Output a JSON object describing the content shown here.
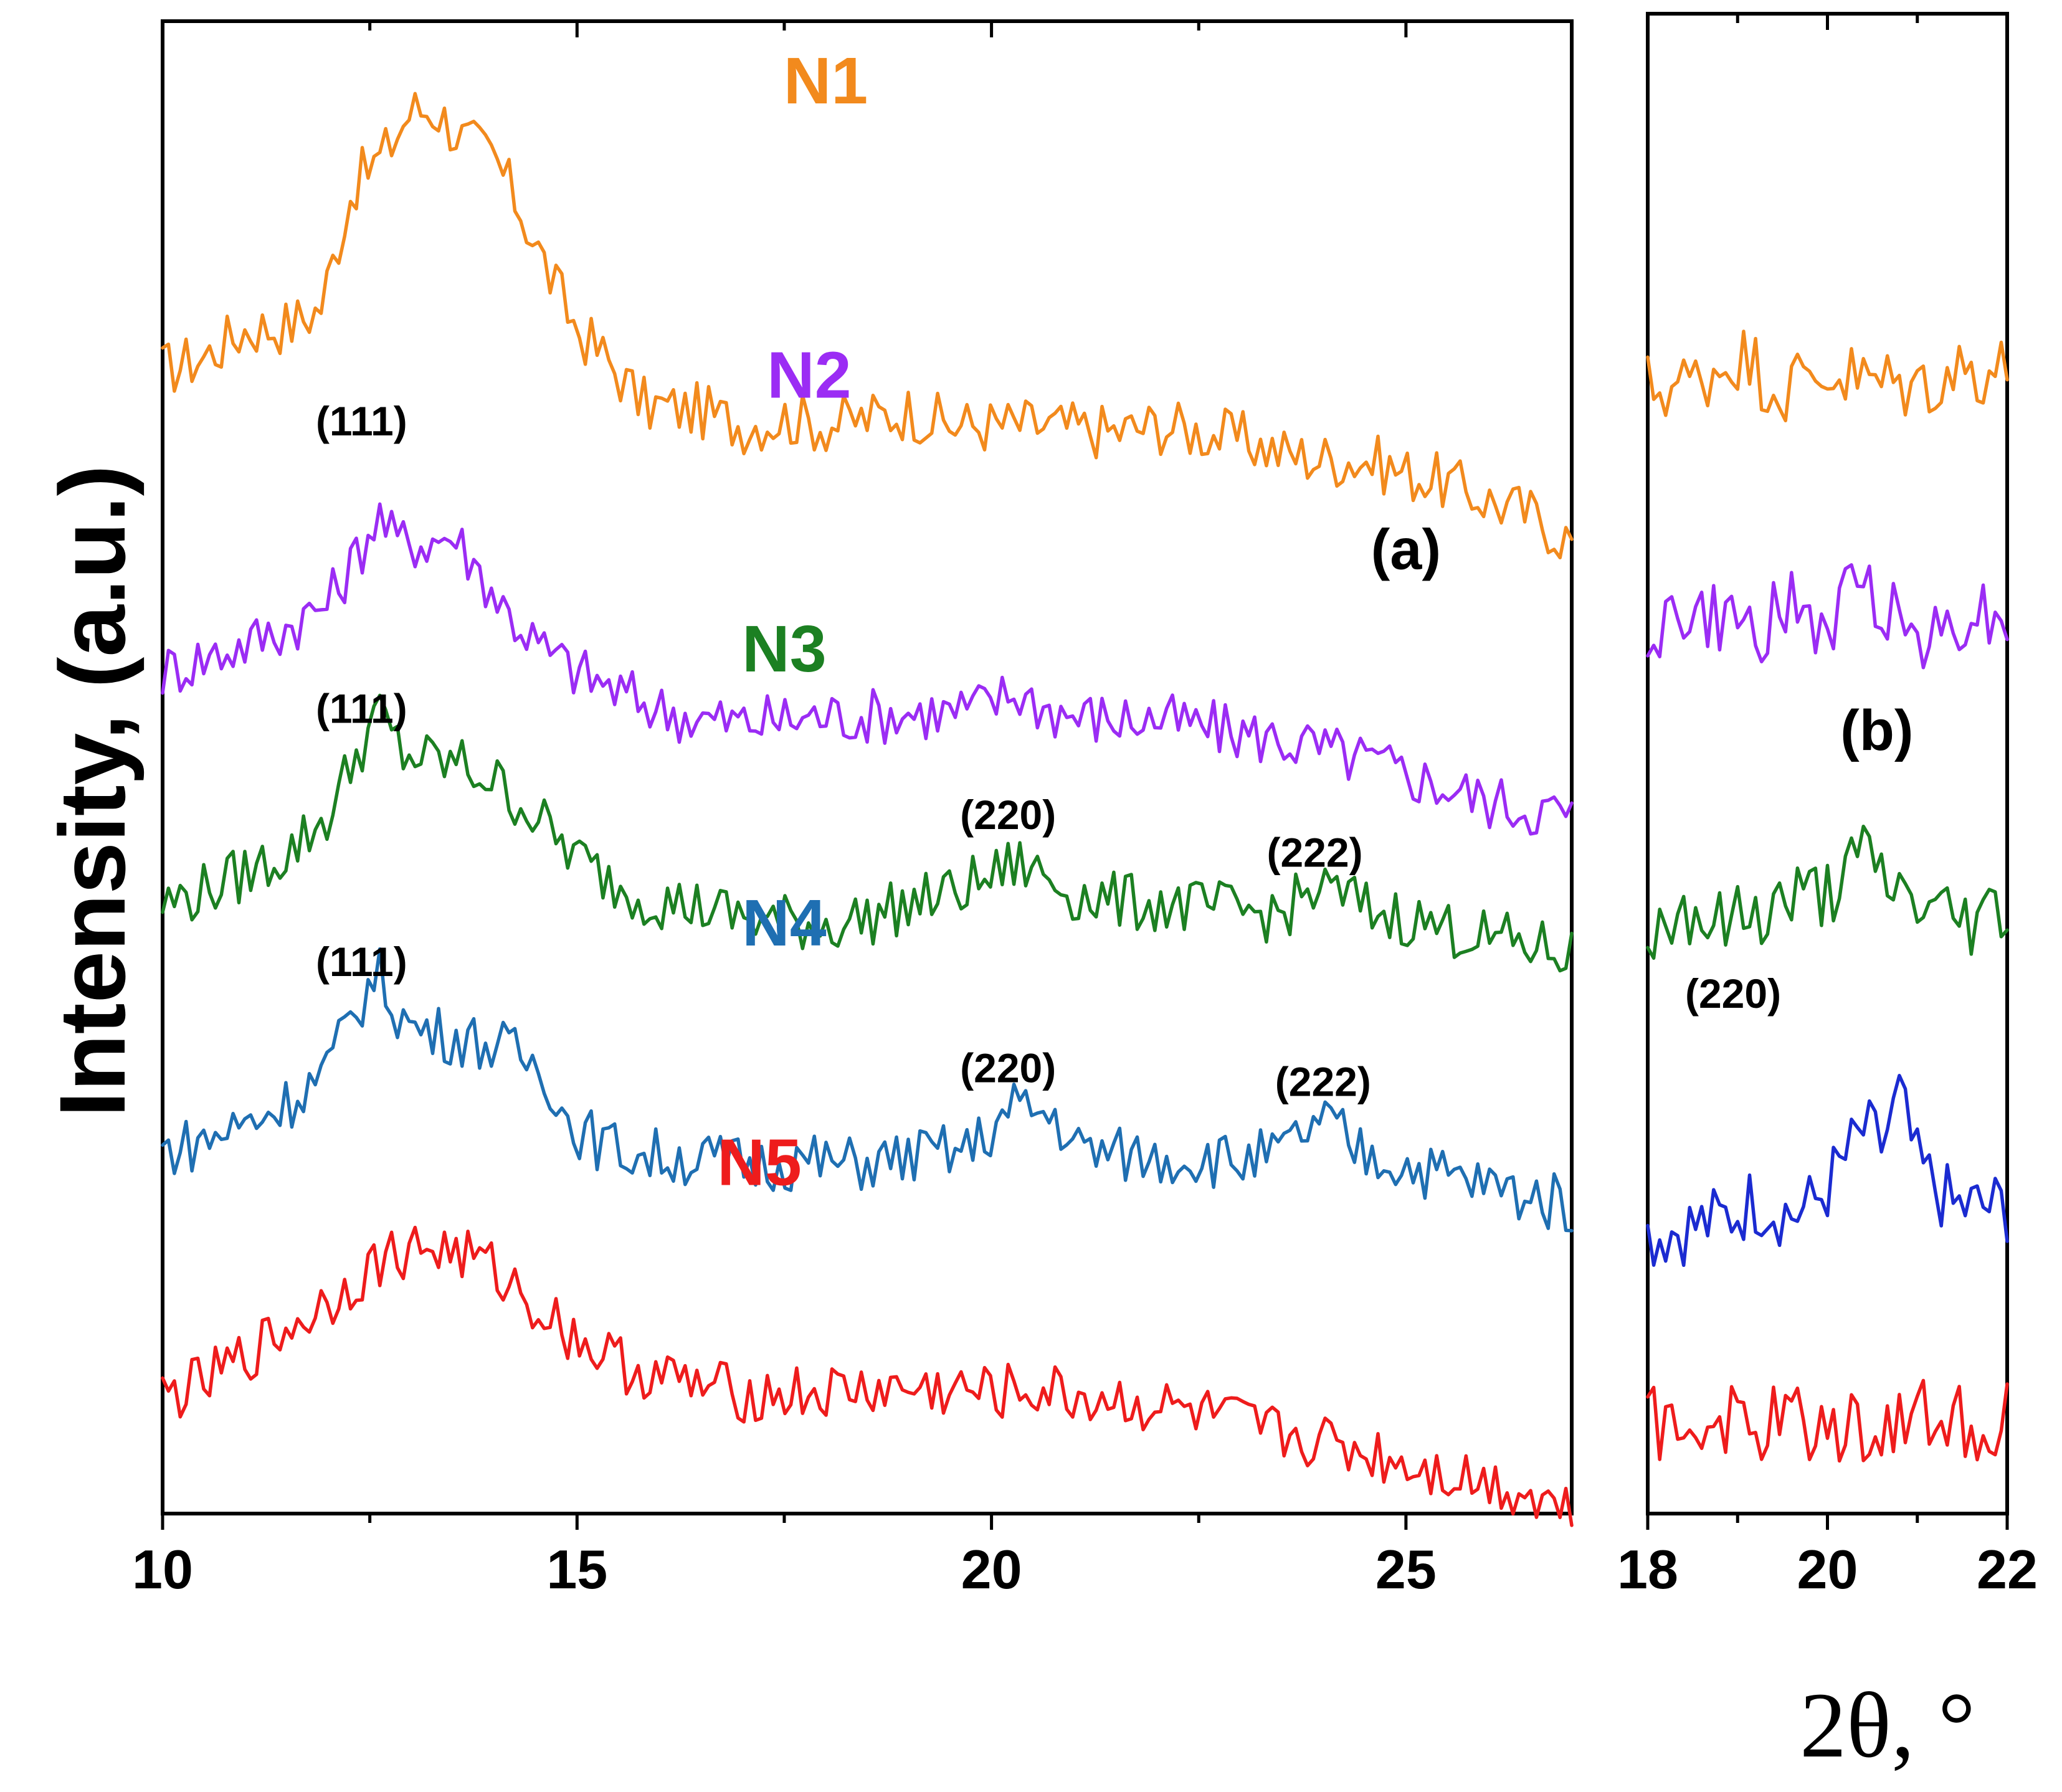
{
  "chart_data": [
    {
      "id": "a",
      "type": "line",
      "panel_label": "(a)",
      "ylabel": "Intensity, (a.u.)",
      "xlabel": "2θ, °",
      "xlim": [
        10,
        27
      ],
      "xticks": [
        10,
        15,
        20,
        25
      ],
      "xtick_labels": [
        "10",
        "15",
        "20",
        "25"
      ],
      "y_units": "arbitrary, vertically stacked",
      "series": [
        {
          "name": "N1",
          "color": "#f28a1d",
          "offset": 1290,
          "x": [
            10,
            10.5,
            11,
            11.5,
            11.9,
            12.3,
            12.7,
            13.0,
            13.3,
            13.6,
            14.0,
            14.3,
            14.7,
            15.0,
            15.4,
            15.8,
            16.5,
            17.0,
            17.5,
            18.0,
            18.5,
            19.0,
            19.5,
            20.0,
            20.5,
            21.0,
            21.5,
            22.0,
            22.5,
            23.0,
            23.5,
            24.0,
            24.5,
            25.0,
            25.5,
            26.0,
            26.5,
            27.0
          ],
          "y": [
            380,
            400,
            440,
            445,
            470,
            650,
            700,
            760,
            760,
            720,
            690,
            620,
            510,
            440,
            390,
            330,
            320,
            300,
            310,
            300,
            310,
            320,
            300,
            300,
            300,
            295,
            290,
            300,
            290,
            280,
            260,
            250,
            250,
            230,
            215,
            190,
            170,
            130
          ]
        },
        {
          "name": "N2",
          "color": "#9b2cf4",
          "offset": 900,
          "x": [
            10,
            10.5,
            11,
            11.5,
            12.0,
            12.3,
            12.6,
            12.8,
            13.2,
            13.5,
            13.8,
            14.2,
            14.6,
            15.0,
            15.5,
            16.0,
            16.5,
            17.0,
            17.5,
            18.0,
            18.5,
            19.0,
            19.5,
            19.8,
            20.3,
            20.7,
            21.0,
            21.5,
            22.0,
            22.5,
            23.0,
            23.5,
            24.0,
            24.5,
            25.0,
            25.5,
            26.0,
            26.5,
            27.0
          ],
          "y": [
            330,
            350,
            370,
            395,
            430,
            490,
            560,
            520,
            520,
            530,
            480,
            410,
            360,
            330,
            300,
            275,
            260,
            255,
            260,
            265,
            265,
            270,
            270,
            275,
            300,
            275,
            265,
            260,
            260,
            250,
            240,
            230,
            215,
            200,
            180,
            160,
            140,
            130,
            120
          ]
        },
        {
          "name": "N3",
          "color": "#1c8022",
          "offset": 510,
          "x": [
            10,
            10.5,
            11,
            11.5,
            12.0,
            12.3,
            12.6,
            12.9,
            13.2,
            13.6,
            14.0,
            14.4,
            14.8,
            15.2,
            15.6,
            16.0,
            16.5,
            17.0,
            17.5,
            18.0,
            18.5,
            19.0,
            19.5,
            20.0,
            20.3,
            20.6,
            21.0,
            21.5,
            22.0,
            22.5,
            23.0,
            23.5,
            23.8,
            24.0,
            24.3,
            24.6,
            25.0,
            25.5,
            26.0,
            26.5,
            27.0
          ],
          "y": [
            380,
            400,
            425,
            455,
            510,
            590,
            660,
            600,
            590,
            585,
            560,
            520,
            470,
            430,
            400,
            385,
            375,
            360,
            355,
            350,
            360,
            380,
            395,
            420,
            440,
            425,
            395,
            385,
            380,
            375,
            370,
            365,
            395,
            400,
            390,
            370,
            360,
            345,
            330,
            320,
            305
          ]
        },
        {
          "name": "N4",
          "color": "#1f6fb2",
          "offset": 130,
          "x": [
            10,
            10.5,
            11,
            11.5,
            12.0,
            12.3,
            12.6,
            12.8,
            13.0,
            13.4,
            13.8,
            14.2,
            14.6,
            14.9,
            15.3,
            15.7,
            16.2,
            16.7,
            17.2,
            17.7,
            18.2,
            18.7,
            19.2,
            19.7,
            20.0,
            20.3,
            20.5,
            20.8,
            21.0,
            21.5,
            22.0,
            22.5,
            23.0,
            23.5,
            23.8,
            24.1,
            24.4,
            24.8,
            25.3,
            25.8,
            26.3,
            27.0
          ],
          "y": [
            400,
            415,
            440,
            470,
            520,
            600,
            660,
            610,
            580,
            570,
            560,
            545,
            520,
            440,
            410,
            395,
            390,
            385,
            380,
            385,
            380,
            385,
            395,
            400,
            430,
            465,
            460,
            445,
            405,
            395,
            390,
            390,
            385,
            395,
            430,
            440,
            400,
            385,
            370,
            355,
            340,
            320
          ]
        },
        {
          "name": "N5",
          "color": "#ee1c1c",
          "offset": -230,
          "x": [
            10,
            10.5,
            11,
            11.5,
            12.0,
            12.4,
            12.8,
            13.2,
            13.6,
            14.0,
            14.4,
            14.8,
            15.2,
            15.6,
            16.0,
            16.5,
            17.0,
            17.5,
            18.0,
            18.5,
            19.0,
            19.5,
            20.0,
            20.5,
            21.0,
            21.5,
            22.0,
            22.5,
            23.0,
            23.5,
            24.0,
            24.5,
            25.0,
            25.5,
            26.0,
            26.5,
            27.0
          ],
          "y": [
            400,
            420,
            460,
            500,
            540,
            580,
            610,
            620,
            610,
            585,
            545,
            505,
            470,
            445,
            430,
            415,
            405,
            405,
            405,
            410,
            410,
            410,
            405,
            410,
            400,
            395,
            385,
            375,
            360,
            345,
            335,
            320,
            305,
            290,
            275,
            260,
            235
          ]
        }
      ],
      "peak_labels": [
        {
          "text": "(111)",
          "series": "N2",
          "x": 12.4,
          "y": 675
        },
        {
          "text": "(111)",
          "series": "N3",
          "x": 12.4,
          "y": 645
        },
        {
          "text": "(111)",
          "series": "N4",
          "x": 12.4,
          "y": 655
        },
        {
          "text": "(220)",
          "series": "N3",
          "x": 20.2,
          "y": 490
        },
        {
          "text": "(222)",
          "series": "N3",
          "x": 23.9,
          "y": 435
        },
        {
          "text": "(220)",
          "series": "N4",
          "x": 20.2,
          "y": 500
        },
        {
          "text": "(222)",
          "series": "N4",
          "x": 24.0,
          "y": 480
        }
      ],
      "series_labels": [
        {
          "text": "N1",
          "x": 18.0,
          "y": 770
        },
        {
          "text": "N2",
          "x": 17.8,
          "y": 730
        },
        {
          "text": "N3",
          "x": 17.5,
          "y": 720
        },
        {
          "text": "N4",
          "x": 17.5,
          "y": 700
        },
        {
          "text": "N5",
          "x": 17.2,
          "y": 710
        }
      ],
      "panel_label_pos": {
        "x": 25.0,
        "y": 1380
      }
    },
    {
      "id": "b",
      "type": "line",
      "panel_label": "(b)",
      "xlim": [
        18,
        22
      ],
      "xticks": [
        18,
        20,
        22
      ],
      "xtick_labels": [
        "18",
        "20",
        "22"
      ],
      "y_units": "arbitrary, vertically stacked (zoom of 18–22°)",
      "series": [
        {
          "name": "N1",
          "color": "#f28a1d",
          "offset": 1535,
          "x": [
            18.0,
            18.5,
            19.0,
            19.5,
            20.0,
            20.5,
            21.0,
            21.5,
            22.0
          ],
          "y": [
            100,
            110,
            150,
            100,
            125,
            110,
            105,
            130,
            125
          ]
        },
        {
          "name": "N2",
          "color": "#9b2cf4",
          "offset": 1165,
          "x": [
            18.0,
            18.4,
            18.8,
            19.2,
            19.6,
            20.0,
            20.4,
            20.8,
            21.2,
            21.6,
            22.0
          ],
          "y": [
            120,
            140,
            130,
            120,
            150,
            115,
            200,
            130,
            110,
            150,
            130
          ]
        },
        {
          "name": "N3",
          "color": "#1c8022",
          "offset": 745,
          "x": [
            18.0,
            18.4,
            18.8,
            19.2,
            19.6,
            20.0,
            20.4,
            20.6,
            20.8,
            21.2,
            21.6,
            22.0
          ],
          "y": [
            90,
            140,
            110,
            130,
            150,
            160,
            210,
            185,
            160,
            130,
            120,
            140
          ]
        },
        {
          "name": "N4",
          "color": "#1b2bd1",
          "offset": 345,
          "x": [
            18.0,
            18.4,
            18.8,
            19.2,
            19.6,
            19.8,
            20.0,
            20.2,
            20.4,
            20.6,
            20.8,
            21.0,
            21.4,
            21.8,
            22.0
          ],
          "y": [
            60,
            70,
            80,
            110,
            90,
            100,
            130,
            170,
            210,
            190,
            260,
            160,
            100,
            100,
            100
          ]
        },
        {
          "name": "N5",
          "color": "#ee1c1c",
          "offset": 0,
          "x": [
            18.0,
            18.4,
            18.8,
            19.2,
            19.6,
            20.0,
            20.4,
            20.8,
            21.2,
            21.6,
            22.0
          ],
          "y": [
            130,
            120,
            140,
            120,
            145,
            120,
            130,
            135,
            150,
            130,
            140
          ]
        }
      ],
      "peak_labels": [
        {
          "text": "(220)",
          "series": "N4",
          "x": 18.95,
          "y": 390
        }
      ],
      "panel_label_pos": {
        "x": 20.55,
        "y": 1110
      }
    }
  ]
}
